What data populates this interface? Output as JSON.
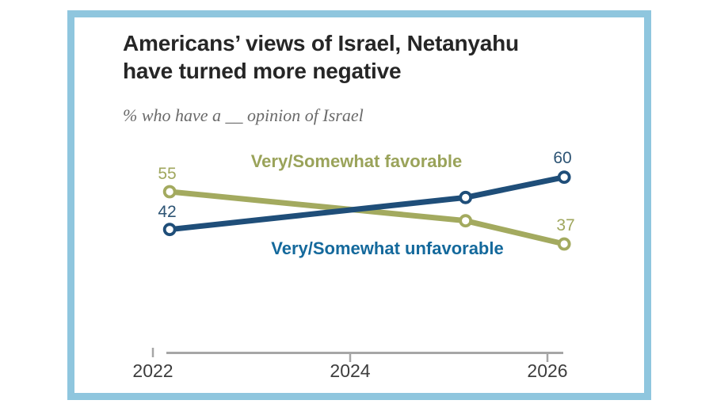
{
  "card": {
    "border_color": "#8fc6de",
    "background": "#ffffff"
  },
  "header": {
    "title_line1": "Americans’ views of Israel, Netanyahu",
    "title_line2": "have turned more negative",
    "subtitle": "% who have a __ opinion of Israel"
  },
  "chart_data": {
    "type": "line",
    "title": "Americans’ views of Israel, Netanyahu have turned more negative",
    "subtitle": "% who have a __ opinion of Israel",
    "x": [
      2022,
      2025,
      2026
    ],
    "x_ticks": [
      2022,
      2024,
      2026
    ],
    "x_tick_labels": [
      "2022",
      "2024",
      "2026"
    ],
    "xlim": [
      2021.9,
      2026.4
    ],
    "ylim": [
      28,
      66
    ],
    "grid": false,
    "legend_position": "inline-series-labels",
    "marker": "open-circle",
    "axis_color": "#a6a6a6",
    "tick_label_color": "#3d3d3d",
    "series": [
      {
        "name": "Very/Somewhat favorable",
        "values": [
          55,
          45,
          37
        ],
        "color": "#a3aa5f",
        "name_color": "#9aa35a",
        "value_label_color": "#a0a75e"
      },
      {
        "name": "Very/Somewhat unfavorable",
        "values": [
          42,
          53,
          60
        ],
        "color": "#1f4e79",
        "name_color": "#14699c",
        "value_label_color": "#2d5474"
      }
    ]
  }
}
